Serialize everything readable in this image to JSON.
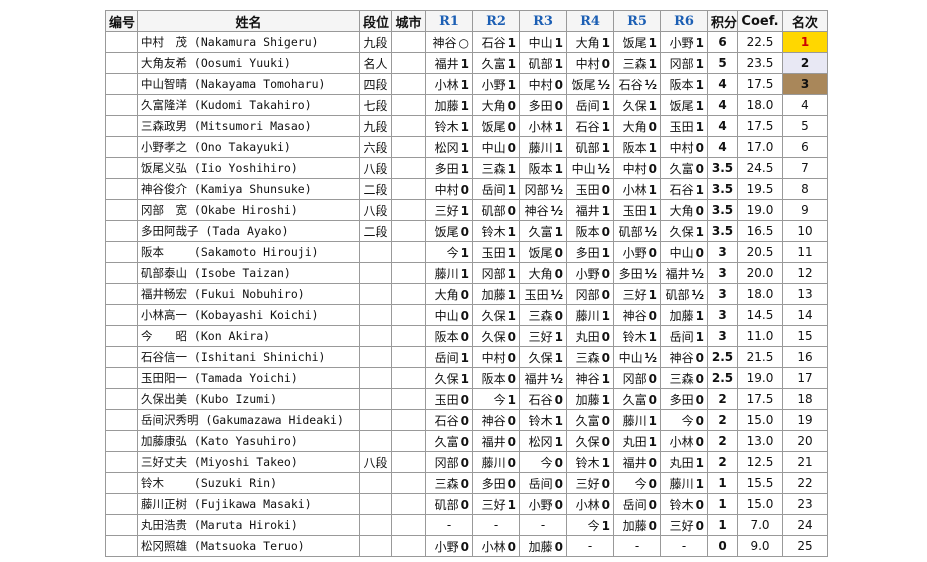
{
  "headers": {
    "no": "编号",
    "name": "姓名",
    "rank": "段位",
    "city": "城市",
    "r1": "R1",
    "r2": "R2",
    "r3": "R3",
    "r4": "R4",
    "r5": "R5",
    "r6": "R6",
    "points": "积分",
    "coef": "Coef.",
    "place": "名次"
  },
  "players": [
    {
      "no": "",
      "name": "中村　茂 (Nakamura Shigeru)",
      "rank": "九段",
      "city": "",
      "rounds": [
        [
          "神谷",
          "○"
        ],
        [
          "石谷",
          "1"
        ],
        [
          "中山",
          "1"
        ],
        [
          "大角",
          "1"
        ],
        [
          "饭尾",
          "1"
        ],
        [
          "小野",
          "1"
        ]
      ],
      "points": "6",
      "coef": "22.5",
      "place": "1",
      "medal": "gold"
    },
    {
      "no": "",
      "name": "大角友希 (Oosumi Yuuki)",
      "rank": "名人",
      "city": "",
      "rounds": [
        [
          "福井",
          "1"
        ],
        [
          "久富",
          "1"
        ],
        [
          "矶部",
          "1"
        ],
        [
          "中村",
          "0"
        ],
        [
          "三森",
          "1"
        ],
        [
          "冈部",
          "1"
        ]
      ],
      "points": "5",
      "coef": "23.5",
      "place": "2",
      "medal": "silver"
    },
    {
      "no": "",
      "name": "中山智晴 (Nakayama Tomoharu)",
      "rank": "四段",
      "city": "",
      "rounds": [
        [
          "小林",
          "1"
        ],
        [
          "小野",
          "1"
        ],
        [
          "中村",
          "0"
        ],
        [
          "饭尾",
          "½"
        ],
        [
          "石谷",
          "½"
        ],
        [
          "阪本",
          "1"
        ]
      ],
      "points": "4",
      "coef": "17.5",
      "place": "3",
      "medal": "bronze"
    },
    {
      "no": "",
      "name": "久富隆洋 (Kudomi Takahiro)",
      "rank": "七段",
      "city": "",
      "rounds": [
        [
          "加藤",
          "1"
        ],
        [
          "大角",
          "0"
        ],
        [
          "多田",
          "0"
        ],
        [
          "岳间",
          "1"
        ],
        [
          "久保",
          "1"
        ],
        [
          "饭尾",
          "1"
        ]
      ],
      "points": "4",
      "coef": "18.0",
      "place": "4",
      "medal": ""
    },
    {
      "no": "",
      "name": "三森政男 (Mitsumori Masao)",
      "rank": "九段",
      "city": "",
      "rounds": [
        [
          "铃木",
          "1"
        ],
        [
          "饭尾",
          "0"
        ],
        [
          "小林",
          "1"
        ],
        [
          "石谷",
          "1"
        ],
        [
          "大角",
          "0"
        ],
        [
          "玉田",
          "1"
        ]
      ],
      "points": "4",
      "coef": "17.5",
      "place": "5",
      "medal": ""
    },
    {
      "no": "",
      "name": "小野孝之 (Ono Takayuki)",
      "rank": "六段",
      "city": "",
      "rounds": [
        [
          "松冈",
          "1"
        ],
        [
          "中山",
          "0"
        ],
        [
          "藤川",
          "1"
        ],
        [
          "矶部",
          "1"
        ],
        [
          "阪本",
          "1"
        ],
        [
          "中村",
          "0"
        ]
      ],
      "points": "4",
      "coef": "17.0",
      "place": "6",
      "medal": ""
    },
    {
      "no": "",
      "name": "饭尾义弘 (Iio Yoshihiro)",
      "rank": "八段",
      "city": "",
      "rounds": [
        [
          "多田",
          "1"
        ],
        [
          "三森",
          "1"
        ],
        [
          "阪本",
          "1"
        ],
        [
          "中山",
          "½"
        ],
        [
          "中村",
          "0"
        ],
        [
          "久富",
          "0"
        ]
      ],
      "points": "3.5",
      "coef": "24.5",
      "place": "7",
      "medal": ""
    },
    {
      "no": "",
      "name": "神谷俊介 (Kamiya Shunsuke)",
      "rank": "二段",
      "city": "",
      "rounds": [
        [
          "中村",
          "0"
        ],
        [
          "岳间",
          "1"
        ],
        [
          "冈部",
          "½"
        ],
        [
          "玉田",
          "0"
        ],
        [
          "小林",
          "1"
        ],
        [
          "石谷",
          "1"
        ]
      ],
      "points": "3.5",
      "coef": "19.5",
      "place": "8",
      "medal": ""
    },
    {
      "no": "",
      "name": "冈部　宽 (Okabe Hiroshi)",
      "rank": "八段",
      "city": "",
      "rounds": [
        [
          "三好",
          "1"
        ],
        [
          "矶部",
          "0"
        ],
        [
          "神谷",
          "½"
        ],
        [
          "福井",
          "1"
        ],
        [
          "玉田",
          "1"
        ],
        [
          "大角",
          "0"
        ]
      ],
      "points": "3.5",
      "coef": "19.0",
      "place": "9",
      "medal": ""
    },
    {
      "no": "",
      "name": "多田阿哉子 (Tada Ayako)",
      "rank": "二段",
      "city": "",
      "rounds": [
        [
          "饭尾",
          "0"
        ],
        [
          "铃木",
          "1"
        ],
        [
          "久富",
          "1"
        ],
        [
          "阪本",
          "0"
        ],
        [
          "矶部",
          "½"
        ],
        [
          "久保",
          "1"
        ]
      ],
      "points": "3.5",
      "coef": "16.5",
      "place": "10",
      "medal": ""
    },
    {
      "no": "",
      "name": "阪本　　 (Sakamoto Hirouji)",
      "rank": "",
      "city": "",
      "rounds": [
        [
          "今",
          "1"
        ],
        [
          "玉田",
          "1"
        ],
        [
          "饭尾",
          "0"
        ],
        [
          "多田",
          "1"
        ],
        [
          "小野",
          "0"
        ],
        [
          "中山",
          "0"
        ]
      ],
      "points": "3",
      "coef": "20.5",
      "place": "11",
      "medal": ""
    },
    {
      "no": "",
      "name": "矶部泰山 (Isobe Taizan)",
      "rank": "",
      "city": "",
      "rounds": [
        [
          "藤川",
          "1"
        ],
        [
          "冈部",
          "1"
        ],
        [
          "大角",
          "0"
        ],
        [
          "小野",
          "0"
        ],
        [
          "多田",
          "½"
        ],
        [
          "福井",
          "½"
        ]
      ],
      "points": "3",
      "coef": "20.0",
      "place": "12",
      "medal": ""
    },
    {
      "no": "",
      "name": "福井畅宏 (Fukui Nobuhiro)",
      "rank": "",
      "city": "",
      "rounds": [
        [
          "大角",
          "0"
        ],
        [
          "加藤",
          "1"
        ],
        [
          "玉田",
          "½"
        ],
        [
          "冈部",
          "0"
        ],
        [
          "三好",
          "1"
        ],
        [
          "矶部",
          "½"
        ]
      ],
      "points": "3",
      "coef": "18.0",
      "place": "13",
      "medal": ""
    },
    {
      "no": "",
      "name": "小林高一 (Kobayashi Koichi)",
      "rank": "",
      "city": "",
      "rounds": [
        [
          "中山",
          "0"
        ],
        [
          "久保",
          "1"
        ],
        [
          "三森",
          "0"
        ],
        [
          "藤川",
          "1"
        ],
        [
          "神谷",
          "0"
        ],
        [
          "加藤",
          "1"
        ]
      ],
      "points": "3",
      "coef": "14.5",
      "place": "14",
      "medal": ""
    },
    {
      "no": "",
      "name": "今　　昭 (Kon Akira)",
      "rank": "",
      "city": "",
      "rounds": [
        [
          "阪本",
          "0"
        ],
        [
          "久保",
          "0"
        ],
        [
          "三好",
          "1"
        ],
        [
          "丸田",
          "0"
        ],
        [
          "铃木",
          "1"
        ],
        [
          "岳间",
          "1"
        ]
      ],
      "points": "3",
      "coef": "11.0",
      "place": "15",
      "medal": ""
    },
    {
      "no": "",
      "name": "石谷信一 (Ishitani Shinichi)",
      "rank": "",
      "city": "",
      "rounds": [
        [
          "岳间",
          "1"
        ],
        [
          "中村",
          "0"
        ],
        [
          "久保",
          "1"
        ],
        [
          "三森",
          "0"
        ],
        [
          "中山",
          "½"
        ],
        [
          "神谷",
          "0"
        ]
      ],
      "points": "2.5",
      "coef": "21.5",
      "place": "16",
      "medal": ""
    },
    {
      "no": "",
      "name": "玉田阳一 (Tamada Yoichi)",
      "rank": "",
      "city": "",
      "rounds": [
        [
          "久保",
          "1"
        ],
        [
          "阪本",
          "0"
        ],
        [
          "福井",
          "½"
        ],
        [
          "神谷",
          "1"
        ],
        [
          "冈部",
          "0"
        ],
        [
          "三森",
          "0"
        ]
      ],
      "points": "2.5",
      "coef": "19.0",
      "place": "17",
      "medal": ""
    },
    {
      "no": "",
      "name": "久保出美 (Kubo Izumi)",
      "rank": "",
      "city": "",
      "rounds": [
        [
          "玉田",
          "0"
        ],
        [
          "今",
          "1"
        ],
        [
          "石谷",
          "0"
        ],
        [
          "加藤",
          "1"
        ],
        [
          "久富",
          "0"
        ],
        [
          "多田",
          "0"
        ]
      ],
      "points": "2",
      "coef": "17.5",
      "place": "18",
      "medal": ""
    },
    {
      "no": "",
      "name": "岳间沢秀明 (Gakumazawa Hideaki)",
      "rank": "",
      "city": "",
      "rounds": [
        [
          "石谷",
          "0"
        ],
        [
          "神谷",
          "0"
        ],
        [
          "铃木",
          "1"
        ],
        [
          "久富",
          "0"
        ],
        [
          "藤川",
          "1"
        ],
        [
          "今",
          "0"
        ]
      ],
      "points": "2",
      "coef": "15.0",
      "place": "19",
      "medal": ""
    },
    {
      "no": "",
      "name": "加藤康弘 (Kato Yasuhiro)",
      "rank": "",
      "city": "",
      "rounds": [
        [
          "久富",
          "0"
        ],
        [
          "福井",
          "0"
        ],
        [
          "松冈",
          "1"
        ],
        [
          "久保",
          "0"
        ],
        [
          "丸田",
          "1"
        ],
        [
          "小林",
          "0"
        ]
      ],
      "points": "2",
      "coef": "13.0",
      "place": "20",
      "medal": ""
    },
    {
      "no": "",
      "name": "三好丈夫 (Miyoshi Takeo)",
      "rank": "八段",
      "city": "",
      "rounds": [
        [
          "冈部",
          "0"
        ],
        [
          "藤川",
          "0"
        ],
        [
          "今",
          "0"
        ],
        [
          "铃木",
          "1"
        ],
        [
          "福井",
          "0"
        ],
        [
          "丸田",
          "1"
        ]
      ],
      "points": "2",
      "coef": "12.5",
      "place": "21",
      "medal": ""
    },
    {
      "no": "",
      "name": "铃木　　 (Suzuki Rin)",
      "rank": "",
      "city": "",
      "rounds": [
        [
          "三森",
          "0"
        ],
        [
          "多田",
          "0"
        ],
        [
          "岳间",
          "0"
        ],
        [
          "三好",
          "0"
        ],
        [
          "今",
          "0"
        ],
        [
          "藤川",
          "1"
        ]
      ],
      "points": "1",
      "coef": "15.5",
      "place": "22",
      "medal": ""
    },
    {
      "no": "",
      "name": "藤川正树 (Fujikawa Masaki)",
      "rank": "",
      "city": "",
      "rounds": [
        [
          "矶部",
          "0"
        ],
        [
          "三好",
          "1"
        ],
        [
          "小野",
          "0"
        ],
        [
          "小林",
          "0"
        ],
        [
          "岳间",
          "0"
        ],
        [
          "铃木",
          "0"
        ]
      ],
      "points": "1",
      "coef": "15.0",
      "place": "23",
      "medal": ""
    },
    {
      "no": "",
      "name": "丸田浩贵 (Maruta Hiroki)",
      "rank": "",
      "city": "",
      "rounds": [
        [
          "-",
          ""
        ],
        [
          "-",
          ""
        ],
        [
          "-",
          ""
        ],
        [
          "今",
          "1"
        ],
        [
          "加藤",
          "0"
        ],
        [
          "三好",
          "0"
        ]
      ],
      "points": "1",
      "coef": "7.0",
      "place": "24",
      "medal": ""
    },
    {
      "no": "",
      "name": "松冈照雄 (Matsuoka Teruo)",
      "rank": "",
      "city": "",
      "rounds": [
        [
          "小野",
          "0"
        ],
        [
          "小林",
          "0"
        ],
        [
          "加藤",
          "0"
        ],
        [
          "-",
          ""
        ],
        [
          "-",
          ""
        ],
        [
          "-",
          ""
        ]
      ],
      "points": "0",
      "coef": "9.0",
      "place": "25",
      "medal": ""
    }
  ]
}
